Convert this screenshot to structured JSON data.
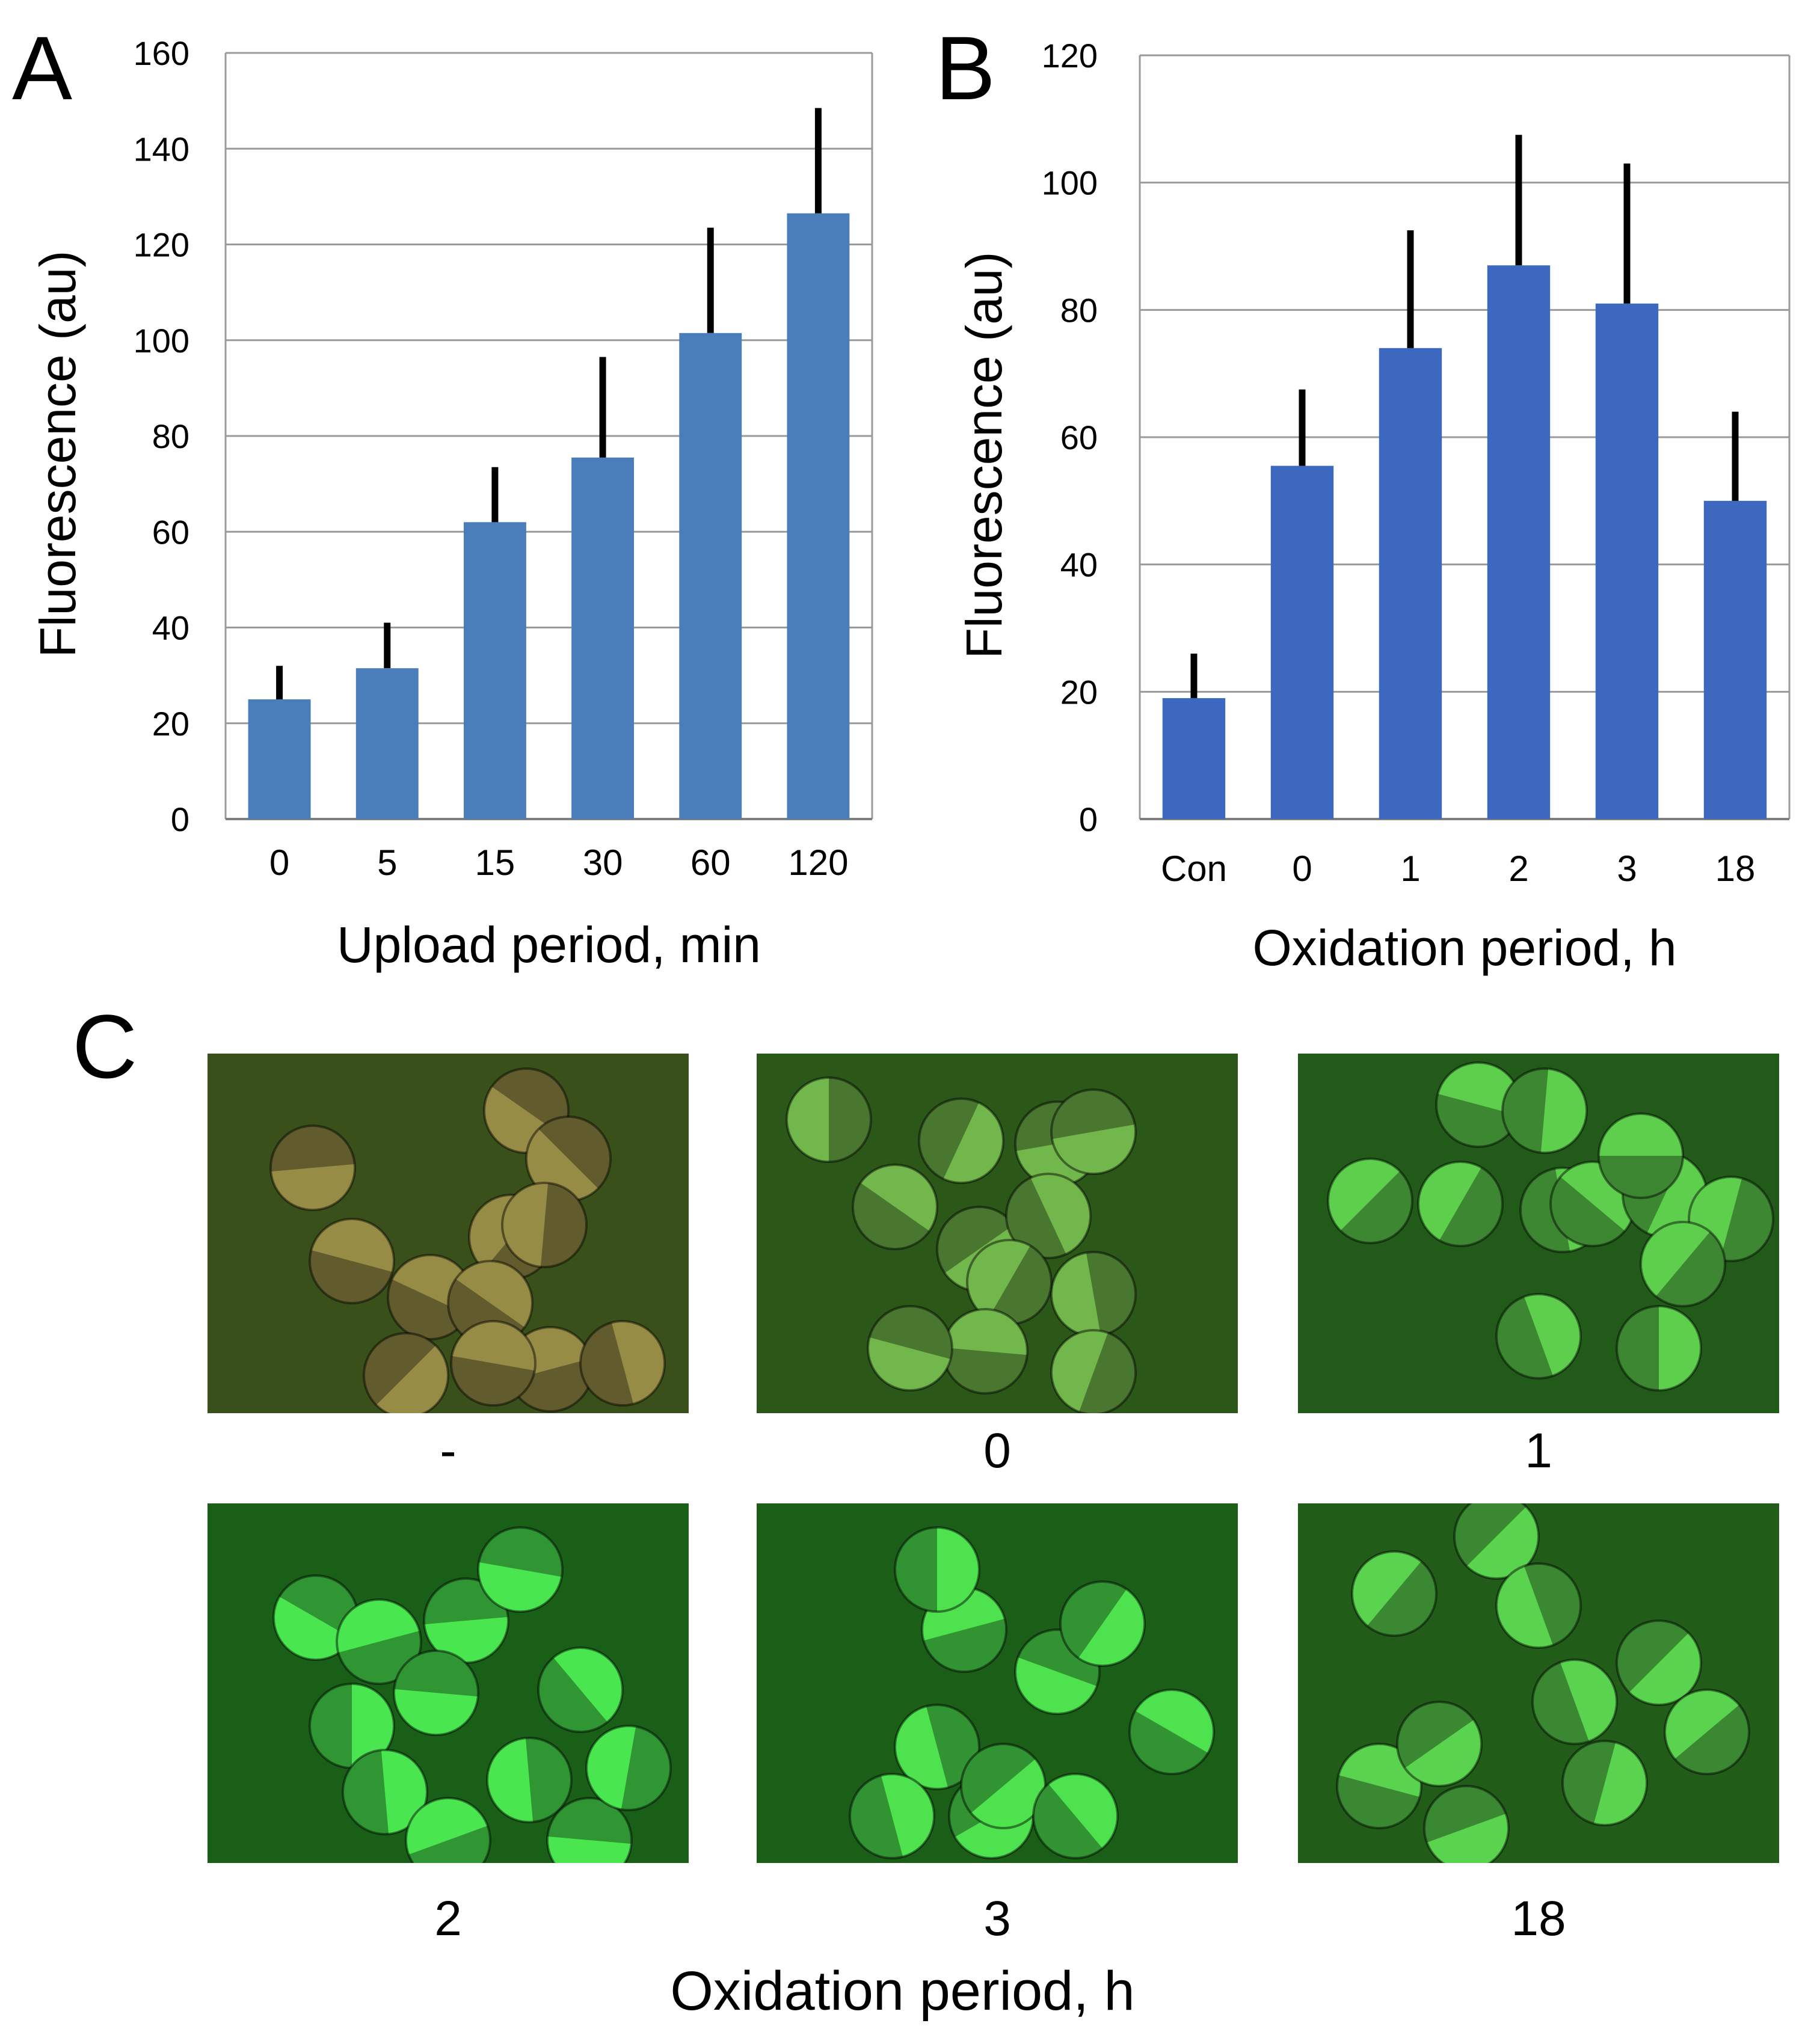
{
  "panels": {
    "a": "A",
    "b": "B",
    "c": "C"
  },
  "colors": {
    "bar_a": "#4A7EBB",
    "bar_b": "#3C68BF",
    "grid": "#9A9A9A",
    "error": "#000000"
  },
  "chart_data": [
    {
      "id": "A",
      "type": "bar",
      "categories": [
        "0",
        "5",
        "15",
        "30",
        "60",
        "120"
      ],
      "values": [
        25,
        31.5,
        62,
        75.5,
        101.5,
        126.5
      ],
      "errors": [
        7,
        9.5,
        11.5,
        21,
        22,
        22
      ],
      "xlabel": "Upload period, min",
      "ylabel": "Fluorescence (au)",
      "ylim": [
        0,
        160
      ],
      "yticks": [
        0,
        20,
        40,
        60,
        80,
        100,
        120,
        140,
        160
      ],
      "grid": true
    },
    {
      "id": "B",
      "type": "bar",
      "categories": [
        "Con",
        "0",
        "1",
        "2",
        "3",
        "18"
      ],
      "values": [
        19,
        55.5,
        74,
        87,
        81,
        50
      ],
      "errors": [
        7,
        12,
        18.5,
        20.5,
        22,
        14
      ],
      "xlabel": "Oxidation period, h",
      "ylabel": "Fluorescence (au)",
      "ylim": [
        0,
        120
      ],
      "yticks": [
        0,
        20,
        40,
        60,
        80,
        100,
        120
      ],
      "grid": true
    }
  ],
  "panel_c": {
    "images": [
      {
        "label": "-",
        "level": 0.0
      },
      {
        "label": "0",
        "level": 0.45
      },
      {
        "label": "1",
        "level": 0.7
      },
      {
        "label": "2",
        "level": 0.95
      },
      {
        "label": "3",
        "level": 0.9
      },
      {
        "label": "18",
        "level": 0.75
      }
    ],
    "xlabel": "Oxidation period, h"
  }
}
